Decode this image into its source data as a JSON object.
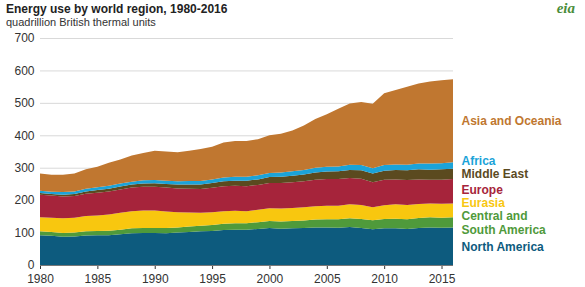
{
  "chart_data": {
    "type": "area",
    "stacked": true,
    "title": "Energy use by world region, 1980-2016",
    "subtitle": "quadrillion British thermal units",
    "logo": "eia",
    "grid": true,
    "x": [
      1980,
      1981,
      1982,
      1983,
      1984,
      1985,
      1986,
      1987,
      1988,
      1989,
      1990,
      1991,
      1992,
      1993,
      1994,
      1995,
      1996,
      1997,
      1998,
      1999,
      2000,
      2001,
      2002,
      2003,
      2004,
      2005,
      2006,
      2007,
      2008,
      2009,
      2010,
      2011,
      2012,
      2013,
      2014,
      2015,
      2016
    ],
    "xlim": [
      1980,
      2016
    ],
    "xticks": [
      1980,
      1985,
      1990,
      1995,
      2000,
      2005,
      2010,
      2015
    ],
    "ylim": [
      0,
      700
    ],
    "yticks": [
      0,
      100,
      200,
      300,
      400,
      500,
      600,
      700
    ],
    "series": [
      {
        "name": "North America",
        "color": "#0d5b7e",
        "values": [
          92,
          90,
          87,
          88,
          91,
          92,
          92,
          95,
          98,
          99,
          99,
          98,
          100,
          102,
          104,
          105,
          108,
          109,
          109,
          111,
          114,
          112,
          113,
          114,
          116,
          116,
          115,
          117,
          114,
          110,
          113,
          113,
          111,
          114,
          116,
          115,
          116
        ]
      },
      {
        "name": "Central and South America",
        "color": "#4f9a3b",
        "values": [
          12,
          12,
          12,
          12,
          13,
          13,
          14,
          14,
          15,
          15,
          15,
          16,
          16,
          17,
          17,
          18,
          19,
          20,
          20,
          21,
          22,
          22,
          23,
          23,
          24,
          25,
          26,
          27,
          28,
          28,
          29,
          30,
          30,
          31,
          31,
          31,
          31
        ]
      },
      {
        "name": "Eurasia",
        "color": "#f8c70f",
        "values": [
          43,
          44,
          45,
          46,
          47,
          48,
          50,
          52,
          53,
          54,
          54,
          51,
          47,
          43,
          40,
          40,
          39,
          38,
          37,
          38,
          39,
          40,
          40,
          41,
          41,
          42,
          42,
          43,
          43,
          40,
          42,
          44,
          44,
          43,
          43,
          43,
          43
        ]
      },
      {
        "name": "Europe",
        "color": "#a6243b",
        "values": [
          70,
          68,
          67,
          67,
          69,
          70,
          71,
          72,
          73,
          73,
          73,
          74,
          73,
          73,
          73,
          75,
          77,
          77,
          77,
          77,
          78,
          79,
          79,
          80,
          82,
          82,
          82,
          81,
          81,
          77,
          79,
          77,
          77,
          76,
          73,
          74,
          75
        ]
      },
      {
        "name": "Middle East",
        "color": "#5b4a1f",
        "values": [
          5,
          5,
          6,
          6,
          7,
          8,
          8,
          9,
          9,
          10,
          11,
          11,
          12,
          13,
          14,
          15,
          15,
          16,
          17,
          17,
          18,
          19,
          20,
          21,
          22,
          23,
          24,
          25,
          26,
          27,
          28,
          29,
          30,
          31,
          31,
          32,
          32
        ]
      },
      {
        "name": "Africa",
        "color": "#1ba3d8",
        "values": [
          7,
          7,
          8,
          8,
          8,
          9,
          9,
          9,
          9,
          10,
          10,
          10,
          10,
          11,
          11,
          11,
          12,
          12,
          12,
          13,
          13,
          13,
          14,
          14,
          15,
          15,
          15,
          16,
          16,
          16,
          17,
          17,
          17,
          18,
          19,
          19,
          20
        ]
      },
      {
        "name": "Asia and Oceania",
        "color": "#c07730",
        "values": [
          53,
          52,
          53,
          55,
          60,
          63,
          71,
          74,
          81,
          84,
          90,
          90,
          90,
          93,
          99,
          101,
          108,
          110,
          110,
          111,
          116,
          120,
          126,
          137,
          150,
          162,
          178,
          189,
          195,
          199,
          222,
          230,
          241,
          247,
          253,
          256,
          256
        ]
      }
    ]
  }
}
